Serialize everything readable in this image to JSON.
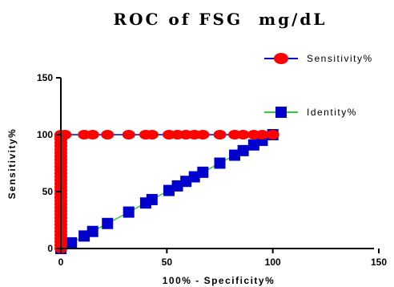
{
  "chart_data": {
    "type": "line",
    "title": "ROC of FSG  mg/dL",
    "xlabel": "100% - Specificity%",
    "ylabel": "Sensitivity%",
    "xlim": [
      0,
      150
    ],
    "ylim": [
      0,
      150
    ],
    "xticks": [
      0,
      50,
      100,
      150
    ],
    "yticks": [
      0,
      50,
      100,
      150
    ],
    "grid": false,
    "legend_position": "top-right",
    "series": [
      {
        "name": "Sensitivity%",
        "marker": "circle",
        "color": "#ff0000",
        "line_color": "#0000cc",
        "x": [
          0,
          0,
          0,
          0,
          0,
          0,
          0,
          0,
          0,
          0,
          0,
          0,
          0,
          0,
          0,
          0,
          0,
          0,
          0,
          0,
          0,
          0,
          0,
          0,
          0,
          0,
          0,
          0,
          0,
          0,
          0,
          0,
          0,
          0,
          0,
          2,
          11,
          15,
          22,
          32,
          40,
          43,
          51,
          55,
          59,
          63,
          67,
          75,
          82,
          86,
          91,
          95,
          100
        ],
        "y": [
          0,
          3,
          6,
          9,
          12,
          15,
          18,
          21,
          24,
          27,
          30,
          33,
          36,
          39,
          42,
          45,
          48,
          51,
          54,
          57,
          60,
          63,
          66,
          69,
          72,
          75,
          78,
          81,
          84,
          87,
          90,
          93,
          96,
          98,
          100,
          100,
          100,
          100,
          100,
          100,
          100,
          100,
          100,
          100,
          100,
          100,
          100,
          100,
          100,
          100,
          100,
          100,
          100
        ]
      },
      {
        "name": "Identity%",
        "marker": "square",
        "color": "#0000cc",
        "line_color": "#33cc33",
        "x": [
          0,
          5,
          11,
          15,
          22,
          32,
          40,
          43,
          51,
          55,
          59,
          63,
          67,
          75,
          82,
          86,
          91,
          95,
          100
        ],
        "y": [
          0,
          5,
          11,
          15,
          22,
          32,
          40,
          43,
          51,
          55,
          59,
          63,
          67,
          75,
          82,
          86,
          91,
          95,
          100
        ]
      }
    ]
  }
}
